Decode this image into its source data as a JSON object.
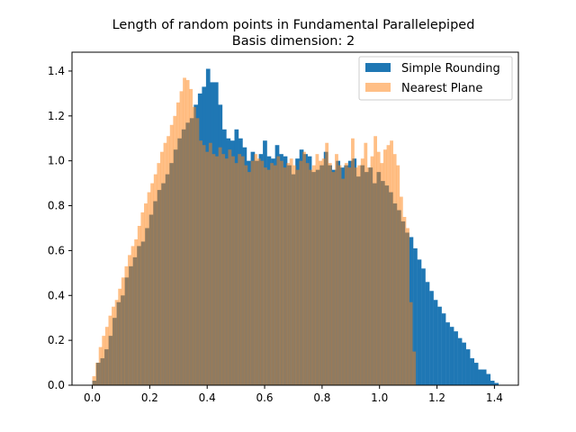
{
  "chart_data": {
    "type": "bar",
    "title": "Length of random points in Fundamental Parallelepiped",
    "subtitle": "Basis dimension: 2",
    "xlabel": "",
    "ylabel": "",
    "xlim": [
      -0.0706,
      1.4834
    ],
    "ylim": [
      0,
      1.484
    ],
    "xticks": [
      "0.0",
      "0.2",
      "0.4",
      "0.6",
      "0.8",
      "1.0",
      "1.2",
      "1.4"
    ],
    "xtick_values": [
      0.0,
      0.2,
      0.4,
      0.6,
      0.8,
      1.0,
      1.2,
      1.4
    ],
    "yticks": [
      "0.0",
      "0.2",
      "0.4",
      "0.6",
      "0.8",
      "1.0",
      "1.2",
      "1.4"
    ],
    "ytick_values": [
      0.0,
      0.2,
      0.4,
      0.6,
      0.8,
      1.0,
      1.2,
      1.4
    ],
    "grid": false,
    "legend_position": "top-right",
    "series": [
      {
        "name": "Simple Rounding",
        "color": "#1f77b4",
        "opacity": 1.0,
        "bin_start": 0.0,
        "bin_width": 0.01414,
        "values": [
          0.02,
          0.1,
          0.12,
          0.16,
          0.22,
          0.3,
          0.37,
          0.4,
          0.48,
          0.53,
          0.57,
          0.62,
          0.64,
          0.7,
          0.76,
          0.82,
          0.87,
          0.9,
          0.94,
          0.99,
          1.05,
          1.1,
          1.14,
          1.17,
          1.19,
          1.25,
          1.3,
          1.33,
          1.41,
          1.35,
          1.35,
          1.25,
          1.14,
          1.1,
          1.09,
          1.14,
          1.1,
          1.06,
          1.0,
          1.04,
          1.0,
          1.03,
          1.09,
          1.02,
          1.01,
          1.07,
          1.03,
          1.02,
          0.98,
          0.94,
          1.01,
          1.05,
          1.03,
          1.02,
          0.95,
          0.96,
          0.98,
          1.04,
          0.98,
          0.96,
          1.0,
          0.97,
          0.98,
          1.0,
          1.01,
          0.93,
          0.98,
          0.95,
          0.97,
          0.9,
          0.95,
          0.91,
          0.89,
          0.86,
          0.81,
          0.78,
          0.73,
          0.68,
          0.66,
          0.61,
          0.56,
          0.52,
          0.46,
          0.42,
          0.38,
          0.35,
          0.32,
          0.28,
          0.26,
          0.24,
          0.21,
          0.19,
          0.16,
          0.12,
          0.1,
          0.07,
          0.07,
          0.05,
          0.02,
          0.01
        ]
      },
      {
        "name": "Nearest Plane",
        "color": "#ff7f0e",
        "opacity": 0.5,
        "bin_start": 0.0,
        "bin_width": 0.01126,
        "values": [
          0.04,
          0.1,
          0.17,
          0.22,
          0.26,
          0.31,
          0.35,
          0.38,
          0.43,
          0.48,
          0.53,
          0.58,
          0.62,
          0.65,
          0.71,
          0.77,
          0.81,
          0.86,
          0.9,
          0.94,
          0.99,
          1.04,
          1.08,
          1.11,
          1.16,
          1.2,
          1.26,
          1.31,
          1.37,
          1.36,
          1.32,
          1.24,
          1.19,
          1.09,
          1.07,
          1.04,
          1.08,
          1.03,
          1.02,
          1.06,
          1.03,
          1.01,
          1.05,
          1.02,
          0.99,
          1.03,
          1.02,
          0.98,
          0.95,
          1.0,
          1.03,
          1.01,
          1.0,
          0.97,
          0.96,
          0.99,
          0.98,
          1.02,
          1.0,
          0.97,
          0.99,
          1.01,
          0.98,
          0.96,
          1.0,
          1.04,
          0.99,
          0.96,
          0.98,
          1.03,
          1.0,
          1.01,
          1.08,
          0.99,
          0.95,
          1.03,
          0.98,
          0.92,
          0.99,
          0.97,
          1.1,
          0.97,
          0.98,
          1.01,
          1.08,
          0.97,
          1.02,
          1.11,
          1.04,
          0.99,
          1.05,
          1.07,
          1.09,
          1.03,
          0.98,
          0.84,
          0.75,
          0.7,
          0.37,
          0.15
        ]
      }
    ]
  }
}
